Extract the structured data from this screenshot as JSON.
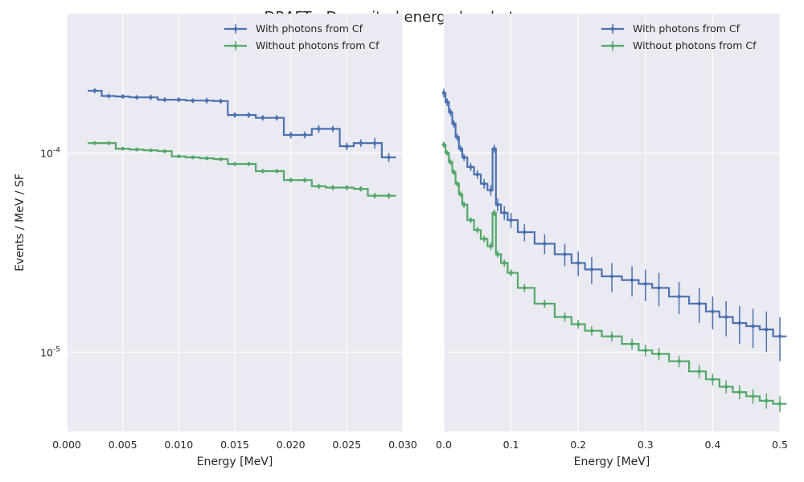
{
  "figure": {
    "title": "DRAFT - Deposited energy by photons",
    "ylabel": "Events / MeV / SF"
  },
  "colors": {
    "axes_bg": "#EAEAF2",
    "grid": "#FFFFFF",
    "series_with": "#4C72B0",
    "series_without": "#55A868"
  },
  "chart_data": [
    {
      "type": "line",
      "drawstyle": "steps-mid",
      "xlabel": "Energy [MeV]",
      "ylabel": "Events / MeV / SF",
      "xlim": [
        0.0,
        0.03
      ],
      "ylim": [
        4e-06,
        0.0005
      ],
      "yscale": "log",
      "grid": true,
      "legend": "top-right",
      "xticks": [
        "0.000",
        "0.005",
        "0.010",
        "0.015",
        "0.020",
        "0.025",
        "0.030"
      ],
      "xtick_values": [
        0.0,
        0.005,
        0.01,
        0.015,
        0.02,
        0.025,
        0.03
      ],
      "yticks": [
        "10^-5",
        "10^-4"
      ],
      "ytick_values": [
        1e-05,
        0.0001
      ],
      "series": [
        {
          "name": "With photons from Cf",
          "x": [
            0.0025,
            0.00375,
            0.005,
            0.00625,
            0.0075,
            0.00875,
            0.01,
            0.01125,
            0.0125,
            0.01375,
            0.015,
            0.01625,
            0.0175,
            0.01875,
            0.02,
            0.02125,
            0.0225,
            0.02375,
            0.025,
            0.02625,
            0.0275,
            0.02875
          ],
          "y": [
            0.000205,
            0.000193,
            0.000192,
            0.00019,
            0.00019,
            0.000185,
            0.000185,
            0.000183,
            0.000183,
            0.000182,
            0.000155,
            0.000155,
            0.00015,
            0.00015,
            0.000123,
            0.000123,
            0.000132,
            0.000132,
            0.000108,
            0.000112,
            0.000112,
            9.5e-05
          ],
          "yerr": [
            6e-06,
            5e-06,
            5e-06,
            5e-06,
            6e-06,
            5e-06,
            5e-06,
            5e-06,
            6e-06,
            5e-06,
            5e-06,
            5e-06,
            5e-06,
            5e-06,
            5e-06,
            5e-06,
            6e-06,
            5e-06,
            5e-06,
            5e-06,
            7e-06,
            5e-06
          ]
        },
        {
          "name": "Without photons from Cf",
          "x": [
            0.0025,
            0.00375,
            0.005,
            0.00625,
            0.0075,
            0.00875,
            0.01,
            0.01125,
            0.0125,
            0.01375,
            0.015,
            0.01625,
            0.0175,
            0.01875,
            0.02,
            0.02125,
            0.0225,
            0.02375,
            0.025,
            0.02625,
            0.0275,
            0.02875
          ],
          "y": [
            0.000112,
            0.000112,
            0.000105,
            0.000104,
            0.000103,
            0.000102,
            9.6e-05,
            9.5e-05,
            9.4e-05,
            9.3e-05,
            8.8e-05,
            8.8e-05,
            8.1e-05,
            8.1e-05,
            7.3e-05,
            7.3e-05,
            6.8e-05,
            6.7e-05,
            6.7e-05,
            6.6e-05,
            6.1e-05,
            6.1e-05
          ],
          "yerr": [
            2e-06,
            2e-06,
            2e-06,
            2e-06,
            2e-06,
            2e-06,
            2e-06,
            2e-06,
            2e-06,
            2e-06,
            2e-06,
            2e-06,
            2e-06,
            2e-06,
            2e-06,
            2e-06,
            2e-06,
            2e-06,
            2e-06,
            2e-06,
            2e-06,
            2e-06
          ]
        }
      ]
    },
    {
      "type": "line",
      "drawstyle": "steps-mid",
      "xlabel": "Energy [MeV]",
      "xlim": [
        0.0,
        0.5
      ],
      "ylim": [
        4e-06,
        0.0005
      ],
      "yscale": "log",
      "grid": true,
      "legend": "top-right",
      "xticks": [
        "0.0",
        "0.1",
        "0.2",
        "0.3",
        "0.4",
        "0.5"
      ],
      "xtick_values": [
        0.0,
        0.1,
        0.2,
        0.3,
        0.4,
        0.5
      ],
      "ytick_values": [
        1e-05,
        0.0001
      ],
      "series": [
        {
          "name": "With photons from Cf",
          "x": [
            0.0,
            0.005,
            0.01,
            0.015,
            0.02,
            0.025,
            0.03,
            0.04,
            0.05,
            0.06,
            0.07,
            0.075,
            0.08,
            0.09,
            0.1,
            0.12,
            0.15,
            0.18,
            0.2,
            0.22,
            0.25,
            0.28,
            0.3,
            0.32,
            0.35,
            0.38,
            0.4,
            0.42,
            0.44,
            0.46,
            0.48,
            0.5
          ],
          "y": [
            0.0002,
            0.00018,
            0.00016,
            0.00014,
            0.00012,
            0.000105,
            9.5e-05,
            8.5e-05,
            7.8e-05,
            7e-05,
            6.5e-05,
            0.000105,
            5.5e-05,
            5e-05,
            4.6e-05,
            4e-05,
            3.5e-05,
            3.1e-05,
            2.8e-05,
            2.6e-05,
            2.4e-05,
            2.3e-05,
            2.2e-05,
            2.1e-05,
            1.9e-05,
            1.75e-05,
            1.6e-05,
            1.5e-05,
            1.4e-05,
            1.35e-05,
            1.3e-05,
            1.2e-05
          ],
          "yerr": [
            1e-05,
            8e-06,
            7e-06,
            6e-06,
            5e-06,
            4e-06,
            4e-06,
            4e-06,
            4e-06,
            4e-06,
            4e-06,
            5e-06,
            4e-06,
            4e-06,
            4e-06,
            4e-06,
            4e-06,
            4e-06,
            4e-06,
            4e-06,
            4e-06,
            4e-06,
            4e-06,
            4e-06,
            3.5e-06,
            3.5e-06,
            3e-06,
            3e-06,
            3e-06,
            3e-06,
            3e-06,
            3e-06
          ]
        },
        {
          "name": "Without photons from Cf",
          "x": [
            0.0,
            0.005,
            0.01,
            0.015,
            0.02,
            0.025,
            0.03,
            0.04,
            0.05,
            0.06,
            0.07,
            0.075,
            0.08,
            0.09,
            0.1,
            0.12,
            0.15,
            0.18,
            0.2,
            0.22,
            0.25,
            0.28,
            0.3,
            0.32,
            0.35,
            0.38,
            0.4,
            0.42,
            0.44,
            0.46,
            0.48,
            0.5
          ],
          "y": [
            0.00011,
            0.0001,
            9e-05,
            8e-05,
            7e-05,
            6.2e-05,
            5.5e-05,
            4.6e-05,
            4.1e-05,
            3.7e-05,
            3.4e-05,
            5e-05,
            3.1e-05,
            2.8e-05,
            2.5e-05,
            2.1e-05,
            1.75e-05,
            1.5e-05,
            1.38e-05,
            1.28e-05,
            1.2e-05,
            1.1e-05,
            1.02e-05,
            9.8e-06,
            9e-06,
            8e-06,
            7.3e-06,
            6.7e-06,
            6.3e-06,
            6e-06,
            5.7e-06,
            5.5e-06
          ],
          "yerr": [
            4e-06,
            3e-06,
            3e-06,
            2.5e-06,
            2e-06,
            2e-06,
            2e-06,
            1.5e-06,
            1.5e-06,
            1.5e-06,
            1.5e-06,
            2e-06,
            1.2e-06,
            1.2e-06,
            1e-06,
            1e-06,
            8e-07,
            8e-07,
            7e-07,
            7e-07,
            7e-07,
            7e-07,
            7e-07,
            7e-07,
            6e-07,
            6e-07,
            5e-07,
            5e-07,
            5e-07,
            5e-07,
            5e-07,
            5e-07
          ]
        }
      ]
    }
  ]
}
